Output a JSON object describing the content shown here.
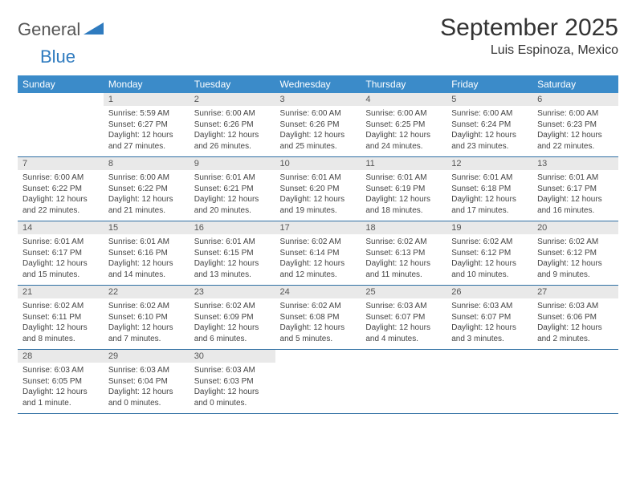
{
  "brand": {
    "text1": "General",
    "text2": "Blue"
  },
  "title": "September 2025",
  "location": "Luis Espinoza, Mexico",
  "colors": {
    "header_bg": "#3b8bc9",
    "header_text": "#ffffff",
    "daynum_bg": "#e9e9e9",
    "row_border": "#2f6fa3",
    "brand_gray": "#555555",
    "brand_blue": "#2f7bbf"
  },
  "day_labels": [
    "Sunday",
    "Monday",
    "Tuesday",
    "Wednesday",
    "Thursday",
    "Friday",
    "Saturday"
  ],
  "weeks": [
    [
      null,
      {
        "n": "1",
        "sr": "Sunrise: 5:59 AM",
        "ss": "Sunset: 6:27 PM",
        "dl": "Daylight: 12 hours and 27 minutes."
      },
      {
        "n": "2",
        "sr": "Sunrise: 6:00 AM",
        "ss": "Sunset: 6:26 PM",
        "dl": "Daylight: 12 hours and 26 minutes."
      },
      {
        "n": "3",
        "sr": "Sunrise: 6:00 AM",
        "ss": "Sunset: 6:26 PM",
        "dl": "Daylight: 12 hours and 25 minutes."
      },
      {
        "n": "4",
        "sr": "Sunrise: 6:00 AM",
        "ss": "Sunset: 6:25 PM",
        "dl": "Daylight: 12 hours and 24 minutes."
      },
      {
        "n": "5",
        "sr": "Sunrise: 6:00 AM",
        "ss": "Sunset: 6:24 PM",
        "dl": "Daylight: 12 hours and 23 minutes."
      },
      {
        "n": "6",
        "sr": "Sunrise: 6:00 AM",
        "ss": "Sunset: 6:23 PM",
        "dl": "Daylight: 12 hours and 22 minutes."
      }
    ],
    [
      {
        "n": "7",
        "sr": "Sunrise: 6:00 AM",
        "ss": "Sunset: 6:22 PM",
        "dl": "Daylight: 12 hours and 22 minutes."
      },
      {
        "n": "8",
        "sr": "Sunrise: 6:00 AM",
        "ss": "Sunset: 6:22 PM",
        "dl": "Daylight: 12 hours and 21 minutes."
      },
      {
        "n": "9",
        "sr": "Sunrise: 6:01 AM",
        "ss": "Sunset: 6:21 PM",
        "dl": "Daylight: 12 hours and 20 minutes."
      },
      {
        "n": "10",
        "sr": "Sunrise: 6:01 AM",
        "ss": "Sunset: 6:20 PM",
        "dl": "Daylight: 12 hours and 19 minutes."
      },
      {
        "n": "11",
        "sr": "Sunrise: 6:01 AM",
        "ss": "Sunset: 6:19 PM",
        "dl": "Daylight: 12 hours and 18 minutes."
      },
      {
        "n": "12",
        "sr": "Sunrise: 6:01 AM",
        "ss": "Sunset: 6:18 PM",
        "dl": "Daylight: 12 hours and 17 minutes."
      },
      {
        "n": "13",
        "sr": "Sunrise: 6:01 AM",
        "ss": "Sunset: 6:17 PM",
        "dl": "Daylight: 12 hours and 16 minutes."
      }
    ],
    [
      {
        "n": "14",
        "sr": "Sunrise: 6:01 AM",
        "ss": "Sunset: 6:17 PM",
        "dl": "Daylight: 12 hours and 15 minutes."
      },
      {
        "n": "15",
        "sr": "Sunrise: 6:01 AM",
        "ss": "Sunset: 6:16 PM",
        "dl": "Daylight: 12 hours and 14 minutes."
      },
      {
        "n": "16",
        "sr": "Sunrise: 6:01 AM",
        "ss": "Sunset: 6:15 PM",
        "dl": "Daylight: 12 hours and 13 minutes."
      },
      {
        "n": "17",
        "sr": "Sunrise: 6:02 AM",
        "ss": "Sunset: 6:14 PM",
        "dl": "Daylight: 12 hours and 12 minutes."
      },
      {
        "n": "18",
        "sr": "Sunrise: 6:02 AM",
        "ss": "Sunset: 6:13 PM",
        "dl": "Daylight: 12 hours and 11 minutes."
      },
      {
        "n": "19",
        "sr": "Sunrise: 6:02 AM",
        "ss": "Sunset: 6:12 PM",
        "dl": "Daylight: 12 hours and 10 minutes."
      },
      {
        "n": "20",
        "sr": "Sunrise: 6:02 AM",
        "ss": "Sunset: 6:12 PM",
        "dl": "Daylight: 12 hours and 9 minutes."
      }
    ],
    [
      {
        "n": "21",
        "sr": "Sunrise: 6:02 AM",
        "ss": "Sunset: 6:11 PM",
        "dl": "Daylight: 12 hours and 8 minutes."
      },
      {
        "n": "22",
        "sr": "Sunrise: 6:02 AM",
        "ss": "Sunset: 6:10 PM",
        "dl": "Daylight: 12 hours and 7 minutes."
      },
      {
        "n": "23",
        "sr": "Sunrise: 6:02 AM",
        "ss": "Sunset: 6:09 PM",
        "dl": "Daylight: 12 hours and 6 minutes."
      },
      {
        "n": "24",
        "sr": "Sunrise: 6:02 AM",
        "ss": "Sunset: 6:08 PM",
        "dl": "Daylight: 12 hours and 5 minutes."
      },
      {
        "n": "25",
        "sr": "Sunrise: 6:03 AM",
        "ss": "Sunset: 6:07 PM",
        "dl": "Daylight: 12 hours and 4 minutes."
      },
      {
        "n": "26",
        "sr": "Sunrise: 6:03 AM",
        "ss": "Sunset: 6:07 PM",
        "dl": "Daylight: 12 hours and 3 minutes."
      },
      {
        "n": "27",
        "sr": "Sunrise: 6:03 AM",
        "ss": "Sunset: 6:06 PM",
        "dl": "Daylight: 12 hours and 2 minutes."
      }
    ],
    [
      {
        "n": "28",
        "sr": "Sunrise: 6:03 AM",
        "ss": "Sunset: 6:05 PM",
        "dl": "Daylight: 12 hours and 1 minute."
      },
      {
        "n": "29",
        "sr": "Sunrise: 6:03 AM",
        "ss": "Sunset: 6:04 PM",
        "dl": "Daylight: 12 hours and 0 minutes."
      },
      {
        "n": "30",
        "sr": "Sunrise: 6:03 AM",
        "ss": "Sunset: 6:03 PM",
        "dl": "Daylight: 12 hours and 0 minutes."
      },
      null,
      null,
      null,
      null
    ]
  ]
}
